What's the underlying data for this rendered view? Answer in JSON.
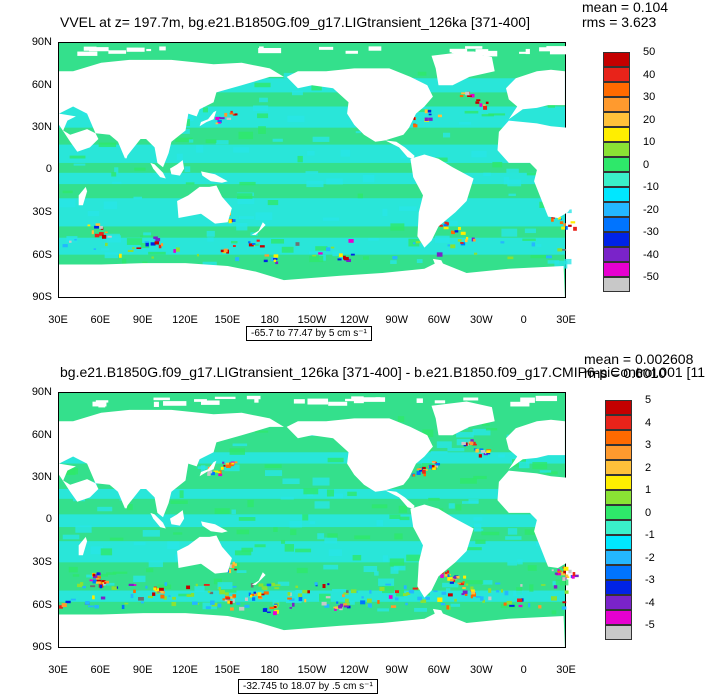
{
  "top": {
    "title": "VVEL at z= 197.7m, bg.e21.B1850G.f09_g17.LIGtransient_126ka [371-400]",
    "mean": "mean = 0.104",
    "rms": "rms = 3.623",
    "range": "-65.7 to 77.47 by 5 cm s⁻¹",
    "colorbar_labels": [
      "50",
      "40",
      "30",
      "20",
      "10",
      "0",
      "-10",
      "-20",
      "-30",
      "-40",
      "-50"
    ]
  },
  "bottom": {
    "title": "bg.e21.B1850G.f09_g17.LIGtransient_126ka [371-400] - b.e21.B1850.f09_g17.CMIP6-piControl.001 [11",
    "mean": "mean = 0.002608",
    "rms": "rms = 0.6010",
    "range": "-32.745 to 18.07 by .5 cm s⁻¹",
    "colorbar_labels": [
      "5",
      "4",
      "3",
      "2",
      "1",
      "0",
      "-1",
      "-2",
      "-3",
      "-4",
      "-5"
    ]
  },
  "axes": {
    "lat_labels": [
      "90N",
      "60N",
      "30N",
      "0",
      "30S",
      "60S",
      "90S"
    ],
    "lon_labels": [
      "30E",
      "60E",
      "90E",
      "120E",
      "150E",
      "180",
      "150W",
      "120W",
      "90W",
      "60W",
      "30W",
      "0",
      "30E"
    ]
  },
  "colors": {
    "palette": [
      "#c40000",
      "#e8231a",
      "#ff6a00",
      "#ff9a2e",
      "#ffc13a",
      "#ffee00",
      "#8ae234",
      "#2ee86a",
      "#3af0c9",
      "#00e7ff",
      "#24b7ff",
      "#0074ff",
      "#0023e6",
      "#7a23c9",
      "#e600d0",
      "#c8c8c8",
      "#707070"
    ],
    "ocean_base": "#34e08c",
    "ocean_alt": "#28e6e6",
    "land": "#ffffff"
  }
}
